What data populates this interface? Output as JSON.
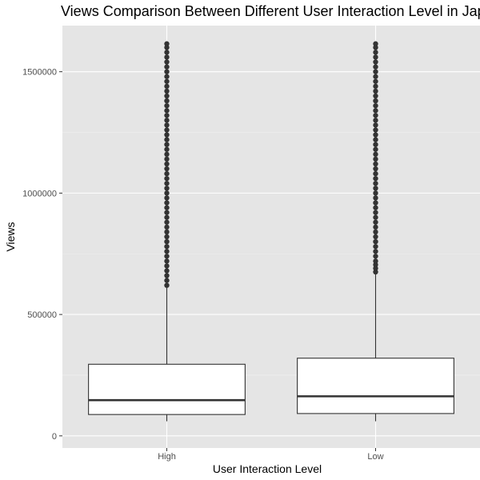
{
  "chart_data": {
    "type": "boxplot",
    "title": "Views Comparison Between Different User Interaction Level in Japan",
    "xlabel": "User Interaction Level",
    "ylabel": "Views",
    "categories": [
      "High",
      "Low"
    ],
    "ylim": [
      -50000,
      1690000
    ],
    "yticks": [
      0,
      500000,
      1000000,
      1500000
    ],
    "ytick_labels": [
      "0",
      "500000",
      "1000000",
      "1500000"
    ],
    "grid": true,
    "boxes": [
      {
        "category": "High",
        "whisker_low": 60000,
        "q1": 88000,
        "median": 147000,
        "q3": 295000,
        "whisker_high": 610000,
        "outliers": [
          620000,
          640000,
          660000,
          680000,
          700000,
          720000,
          740000,
          760000,
          780000,
          800000,
          820000,
          840000,
          860000,
          880000,
          900000,
          920000,
          940000,
          960000,
          980000,
          1000000,
          1020000,
          1040000,
          1060000,
          1080000,
          1100000,
          1120000,
          1140000,
          1160000,
          1180000,
          1200000,
          1220000,
          1240000,
          1260000,
          1280000,
          1300000,
          1320000,
          1340000,
          1360000,
          1380000,
          1400000,
          1420000,
          1440000,
          1460000,
          1480000,
          1500000,
          1520000,
          1540000,
          1560000,
          1580000,
          1600000,
          1615000
        ]
      },
      {
        "category": "Low",
        "whisker_low": 60000,
        "q1": 92000,
        "median": 163000,
        "q3": 320000,
        "whisker_high": 665000,
        "outliers": [
          675000,
          690000,
          705000,
          720000,
          740000,
          760000,
          780000,
          800000,
          820000,
          840000,
          860000,
          880000,
          900000,
          920000,
          940000,
          960000,
          980000,
          1000000,
          1020000,
          1040000,
          1060000,
          1080000,
          1100000,
          1120000,
          1140000,
          1160000,
          1180000,
          1200000,
          1220000,
          1240000,
          1260000,
          1280000,
          1300000,
          1320000,
          1340000,
          1360000,
          1380000,
          1400000,
          1420000,
          1440000,
          1460000,
          1480000,
          1500000,
          1520000,
          1540000,
          1560000,
          1580000,
          1600000,
          1615000
        ]
      }
    ],
    "colors": {
      "panel_background": "#e5e5e5",
      "grid_major": "#ffffff",
      "grid_minor": "#f0f0f0",
      "box_fill": "#ffffff",
      "box_stroke": "#333333",
      "outlier": "#333333"
    }
  }
}
